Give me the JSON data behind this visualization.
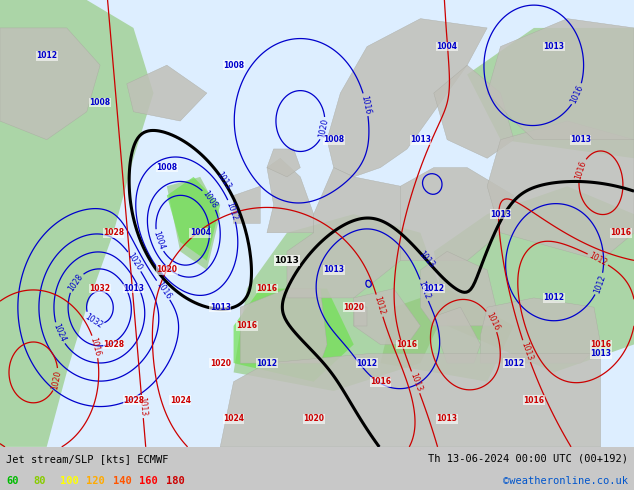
{
  "title_left": "Jet stream/SLP [kts] ECMWF",
  "title_right": "Th 13-06-2024 00:00 UTC (00+192)",
  "copyright": "©weatheronline.co.uk",
  "legend_values": [
    "60",
    "80",
    "100",
    "120",
    "140",
    "160",
    "180"
  ],
  "legend_colors": [
    "#00bb00",
    "#88cc00",
    "#ffff00",
    "#ffaa00",
    "#ff5500",
    "#ff0000",
    "#cc0000"
  ],
  "bg_color": "#c8c8c8",
  "ocean_color": "#ddeeff",
  "figsize": [
    6.34,
    4.9
  ],
  "dpi": 100,
  "xlim": [
    -45,
    50
  ],
  "ylim": [
    27,
    75
  ],
  "green_shading": "#90c878",
  "land_color": "#c0c0b8",
  "isobar_blue": "#0000cc",
  "isobar_red": "#cc0000",
  "bottom_bar_height": 0.088
}
